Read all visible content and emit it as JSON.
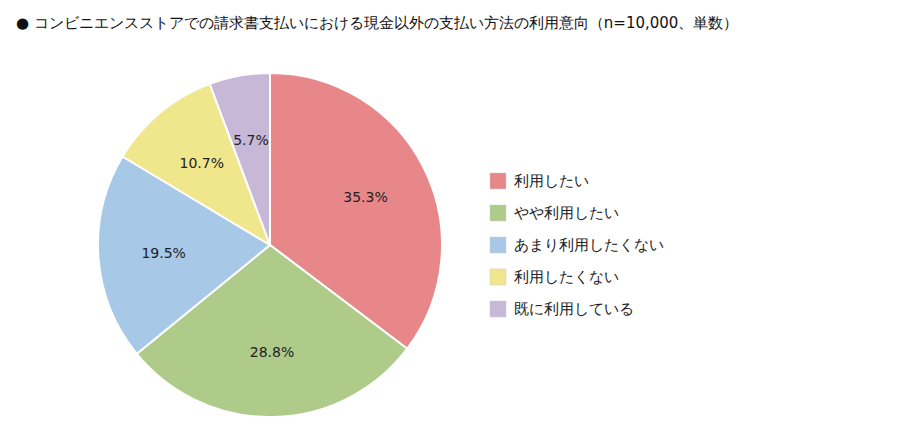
{
  "chart_data": {
    "type": "pie",
    "title": "● コンビニエンスストアでの請求書支払いにおける現金以外の支払い方法の利用意向（n=10,000、単数）",
    "categories": [
      "利用したい",
      "やや利用したい",
      "あまり利用したくない",
      "利用したくない",
      "既に利用している"
    ],
    "values": [
      35.3,
      28.8,
      19.5,
      10.7,
      5.7
    ],
    "value_labels": [
      "35.3%",
      "28.8%",
      "19.5%",
      "10.7%",
      "5.7%"
    ],
    "colors": [
      "#E8878A",
      "#AECB8A",
      "#A8C8E8",
      "#F0E68C",
      "#C8B8D8"
    ],
    "data_labels": true,
    "legend": "right"
  }
}
